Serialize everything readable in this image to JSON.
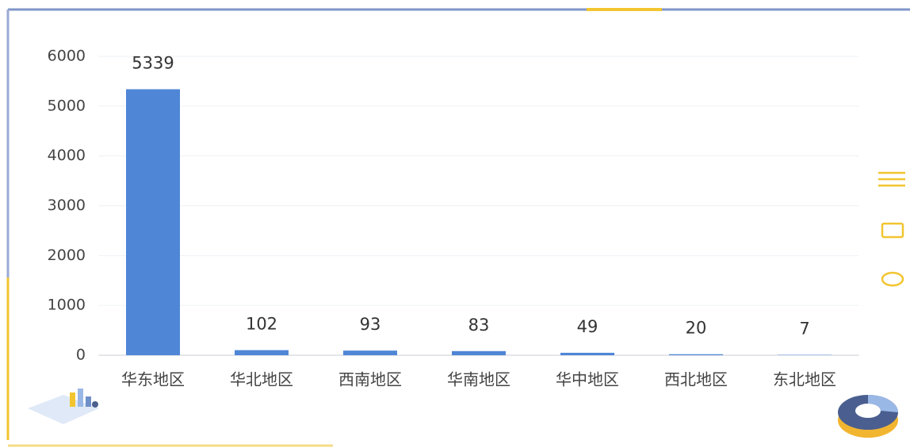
{
  "chart_data": {
    "type": "bar",
    "categories": [
      "华东地区",
      "华北地区",
      "西南地区",
      "华南地区",
      "华中地区",
      "西北地区",
      "东北地区"
    ],
    "values": [
      5339,
      102,
      93,
      83,
      49,
      20,
      7
    ],
    "color": "#4f86d6",
    "ylim": [
      0,
      6000
    ],
    "yticks": [
      0,
      1000,
      2000,
      3000,
      4000,
      5000,
      6000
    ],
    "grid": true
  }
}
